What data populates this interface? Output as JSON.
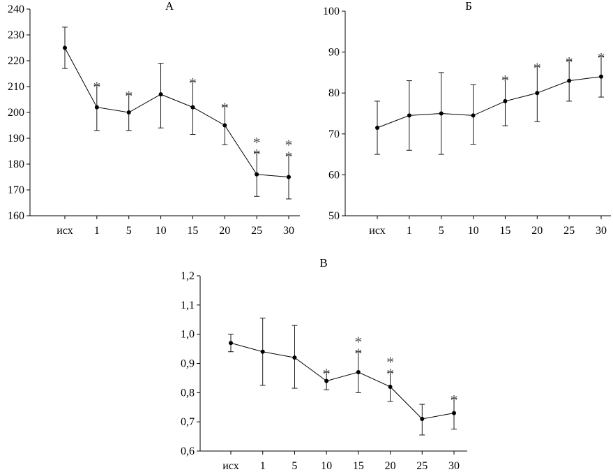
{
  "chart_data": [
    {
      "type": "line",
      "title": "А",
      "categories": [
        "исх",
        "1",
        "5",
        "10",
        "15",
        "20",
        "25",
        "30"
      ],
      "series": [
        {
          "name": "А",
          "values": [
            225,
            202,
            200,
            207,
            202,
            195,
            176,
            175
          ],
          "error_low": [
            217,
            193,
            193,
            194,
            191.5,
            187.5,
            167.5,
            166.5
          ],
          "error_high": [
            233,
            210.5,
            207,
            219,
            212,
            202.5,
            184.5,
            183.5
          ],
          "significance": [
            "",
            "*",
            "*",
            "",
            "*",
            "*",
            "**",
            "**"
          ]
        }
      ],
      "yticks": [
        "160",
        "170",
        "180",
        "190",
        "200",
        "210",
        "220",
        "230",
        "240"
      ],
      "ylim": [
        160,
        240
      ],
      "xlabel": "",
      "ylabel": ""
    },
    {
      "type": "line",
      "title": "Б",
      "categories": [
        "исх",
        "1",
        "5",
        "10",
        "15",
        "20",
        "25",
        "30"
      ],
      "series": [
        {
          "name": "Б",
          "values": [
            71.5,
            74.5,
            75,
            74.5,
            78,
            80,
            83,
            84
          ],
          "error_low": [
            65,
            66,
            65,
            67.5,
            72,
            73,
            78,
            79
          ],
          "error_high": [
            78,
            83,
            85,
            82,
            83.5,
            86.5,
            88,
            89
          ],
          "significance": [
            "",
            "",
            "",
            "",
            "*",
            "*",
            "*",
            "*"
          ]
        }
      ],
      "yticks": [
        "50",
        "60",
        "70",
        "80",
        "90",
        "100"
      ],
      "ylim": [
        50,
        100
      ],
      "xlabel": "",
      "ylabel": ""
    },
    {
      "type": "line",
      "title": "В",
      "categories": [
        "исх",
        "1",
        "5",
        "10",
        "15",
        "20",
        "25",
        "30"
      ],
      "series": [
        {
          "name": "В",
          "values": [
            0.97,
            0.94,
            0.92,
            0.84,
            0.87,
            0.82,
            0.71,
            0.73
          ],
          "error_low": [
            0.94,
            0.825,
            0.815,
            0.81,
            0.8,
            0.77,
            0.655,
            0.675
          ],
          "error_high": [
            1.0,
            1.055,
            1.03,
            0.87,
            0.94,
            0.87,
            0.76,
            0.78
          ],
          "significance": [
            "",
            "",
            "",
            "*",
            "**",
            "**",
            "",
            "*"
          ]
        }
      ],
      "yticks": [
        "0,6",
        "0,7",
        "0,8",
        "0,9",
        "1,0",
        "1,1",
        "1,2"
      ],
      "ylim": [
        0.6,
        1.2
      ],
      "xlabel": "",
      "ylabel": ""
    }
  ]
}
